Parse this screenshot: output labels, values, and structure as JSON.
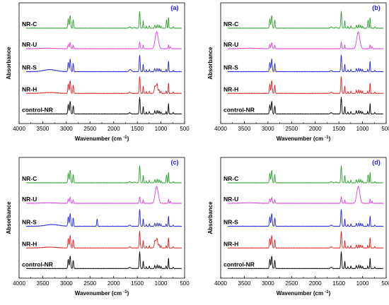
{
  "chart_data": [
    {
      "type": "line",
      "panel": "(a)",
      "ylabel": "Absorbance",
      "xlabel": "Wavenumber (cm",
      "xlabel_sup": "-1",
      "xlabel_end": ")",
      "xlim": [
        4000,
        500
      ],
      "x_ticks": [
        4000,
        3500,
        3000,
        2500,
        2000,
        1500,
        1000,
        500
      ],
      "series": [
        {
          "name": "NR-C",
          "color": "#2ca02c",
          "profile": "C"
        },
        {
          "name": "NR-U",
          "color": "#e040e0",
          "profile": "U"
        },
        {
          "name": "NR-S",
          "color": "#2626e0",
          "profile": "Sa"
        },
        {
          "name": "NR-H",
          "color": "#e02020",
          "profile": "H"
        },
        {
          "name": "control-NR",
          "color": "#000000",
          "profile": "ctrl"
        }
      ]
    },
    {
      "type": "line",
      "panel": "(b)",
      "ylabel": "Absorbance",
      "xlabel": "Wavenumber (cm",
      "xlabel_sup": "-1",
      "xlabel_end": ")",
      "xlim": [
        4000,
        500
      ],
      "x_ticks": [
        4000,
        3500,
        3000,
        2500,
        2000,
        1500,
        1000,
        500
      ],
      "series": [
        {
          "name": "NR-C",
          "color": "#2ca02c",
          "profile": "C"
        },
        {
          "name": "NR-U",
          "color": "#e040e0",
          "profile": "U"
        },
        {
          "name": "NR-S",
          "color": "#2626e0",
          "profile": "ctrl"
        },
        {
          "name": "NR-H",
          "color": "#e02020",
          "profile": "ctrl"
        },
        {
          "name": "control-NR",
          "color": "#000000",
          "profile": "ctrl"
        }
      ]
    },
    {
      "type": "line",
      "panel": "(c)",
      "ylabel": "Absorbance",
      "xlabel": "Wavenumber (cm",
      "xlabel_sup": "-1",
      "xlabel_end": ")",
      "xlim": [
        4000,
        500
      ],
      "x_ticks": [
        4000,
        3500,
        3000,
        2500,
        2000,
        1500,
        1000,
        500
      ],
      "series": [
        {
          "name": "NR-C",
          "color": "#2ca02c",
          "profile": "C"
        },
        {
          "name": "NR-U",
          "color": "#e040e0",
          "profile": "U"
        },
        {
          "name": "NR-S",
          "color": "#2626e0",
          "profile": "Sc"
        },
        {
          "name": "NR-H",
          "color": "#e02020",
          "profile": "H"
        },
        {
          "name": "control-NR",
          "color": "#000000",
          "profile": "ctrl"
        }
      ]
    },
    {
      "type": "line",
      "panel": "(d)",
      "ylabel": "Absorbance",
      "xlabel": "Wavenumber (cm",
      "xlabel_sup": "-1",
      "xlabel_end": ")",
      "xlim": [
        4000,
        500
      ],
      "x_ticks": [
        4000,
        3500,
        3000,
        2500,
        2000,
        1500,
        1000,
        500
      ],
      "series": [
        {
          "name": "NR-C",
          "color": "#2ca02c",
          "profile": "C"
        },
        {
          "name": "NR-U",
          "color": "#e040e0",
          "profile": "U"
        },
        {
          "name": "NR-S",
          "color": "#2626e0",
          "profile": "ctrl"
        },
        {
          "name": "NR-H",
          "color": "#e02020",
          "profile": "ctrl"
        },
        {
          "name": "control-NR",
          "color": "#000000",
          "profile": "ctrl"
        }
      ]
    }
  ],
  "panel_label_color": "#1a1aff"
}
